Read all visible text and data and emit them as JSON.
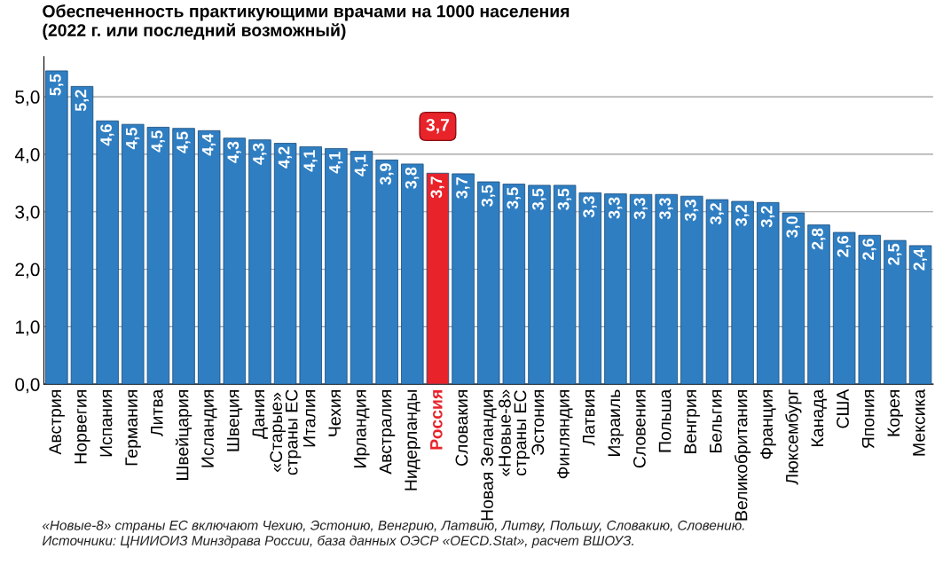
{
  "chart_data": {
    "type": "bar",
    "title": "Обеспеченность практикующими врачами на 1000 населения\n(2022 г. или последний возможный)",
    "categories": [
      "Австрия",
      "Норвегия",
      "Испания",
      "Германия",
      "Литва",
      "Швейцария",
      "Исландия",
      "Швеция",
      "Дания",
      "«Старые»\nстраны ЕС",
      "Италия",
      "Чехия",
      "Ирландия",
      "Австралия",
      "Нидерланды",
      "Россия",
      "Словакия",
      "Новая Зеландия",
      "«Новые-8»\nстраны ЕС",
      "Эстония",
      "Финляндия",
      "Латвия",
      "Израиль",
      "Словения",
      "Польша",
      "Венгрия",
      "Бельгия",
      "Великобритания",
      "Франция",
      "Люксембург",
      "Канада",
      "США",
      "Япония",
      "Корея",
      "Мексика"
    ],
    "values": [
      5.45,
      5.18,
      4.58,
      4.52,
      4.47,
      4.45,
      4.41,
      4.28,
      4.25,
      4.19,
      4.13,
      4.1,
      4.05,
      3.9,
      3.83,
      3.67,
      3.66,
      3.52,
      3.48,
      3.46,
      3.46,
      3.33,
      3.31,
      3.3,
      3.3,
      3.27,
      3.21,
      3.18,
      3.16,
      2.98,
      2.77,
      2.64,
      2.59,
      2.5,
      2.41
    ],
    "value_labels": [
      "5,5",
      "5,2",
      "4,6",
      "4,5",
      "4,5",
      "4,5",
      "4,4",
      "4,3",
      "4,3",
      "4,2",
      "4,1",
      "4,1",
      "4,1",
      "3,9",
      "3,8",
      "3,7",
      "3,7",
      "3,5",
      "3,5",
      "3,5",
      "3,5",
      "3,3",
      "3,3",
      "3,3",
      "3,3",
      "3,3",
      "3,2",
      "3,2",
      "3,2",
      "3,0",
      "2,8",
      "2,6",
      "2,6",
      "2,5",
      "2,4"
    ],
    "colors": [
      "#2f7ec2",
      "#2f7ec2",
      "#2f7ec2",
      "#2f7ec2",
      "#2f7ec2",
      "#2f7ec2",
      "#2f7ec2",
      "#2f7ec2",
      "#2f7ec2",
      "#2f7ec2",
      "#2f7ec2",
      "#2f7ec2",
      "#2f7ec2",
      "#2f7ec2",
      "#2f7ec2",
      "#e8232a",
      "#2f7ec2",
      "#2f7ec2",
      "#2f7ec2",
      "#2f7ec2",
      "#2f7ec2",
      "#2f7ec2",
      "#2f7ec2",
      "#2f7ec2",
      "#2f7ec2",
      "#2f7ec2",
      "#2f7ec2",
      "#2f7ec2",
      "#2f7ec2",
      "#2f7ec2",
      "#2f7ec2",
      "#2f7ec2",
      "#2f7ec2",
      "#2f7ec2",
      "#2f7ec2"
    ],
    "ylim": [
      0,
      5.7
    ],
    "yticks": [
      {
        "value": 0,
        "label": "0,0"
      },
      {
        "value": 1,
        "label": "1,0"
      },
      {
        "value": 2,
        "label": "2,0"
      },
      {
        "value": 3,
        "label": "3,0"
      },
      {
        "value": 4,
        "label": "4,0"
      },
      {
        "value": 5,
        "label": "5,0"
      }
    ],
    "grid": "y",
    "annotations": [
      {
        "text": "3,7",
        "x": "Россия",
        "y": 3.67
      },
      "«Новые-8» страны ЕС включают Чехию, Эстонию, Венгрию, Латвию, Литву, Польшу, Словакию, Словению.",
      "Источники: ЦНИИОИЗ Минздрава России, база данных ОЭСР «OECD.Stat», расчет ВШОУЗ."
    ]
  }
}
